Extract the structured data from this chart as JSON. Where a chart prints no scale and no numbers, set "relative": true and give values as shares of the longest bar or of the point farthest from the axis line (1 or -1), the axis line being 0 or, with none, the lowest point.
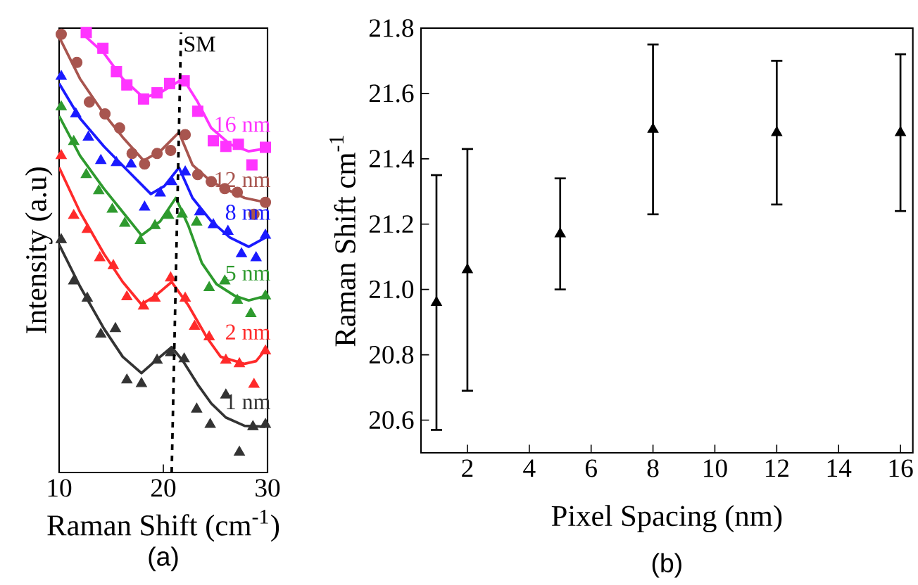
{
  "chart_data": [
    {
      "type": "scatter",
      "relative": true,
      "xlabel": "Raman Shift (cm$^{-1}$)",
      "ylabel": "Intensity (a.u)",
      "xlim": [
        10,
        30
      ],
      "xticks": [
        10,
        20,
        30
      ],
      "annotations": [
        "(a)"
      ],
      "series": [
        {
          "name": "1 nm",
          "type": "scatter",
          "marker": "triangle",
          "color": "#333333",
          "x": [
            10.2,
            11.4,
            12.7,
            14.0,
            15.4,
            16.5,
            17.9,
            19.4,
            20.7,
            22.0,
            23.2,
            24.5,
            26.0,
            27.3,
            28.6,
            29.8
          ],
          "values": [
            0.529,
            0.435,
            0.396,
            0.314,
            0.327,
            0.21,
            0.202,
            0.255,
            0.272,
            0.258,
            0.144,
            0.109,
            0.176,
            0.046,
            0.104,
            0.109
          ]
        },
        {
          "type": "line",
          "color": "#333333",
          "x": [
            10,
            12.0,
            14.3,
            16.1,
            17.9,
            19.2,
            20.8,
            21.9,
            23.3,
            24.6,
            26.0,
            27.8,
            29.8
          ],
          "values": [
            0.518,
            0.423,
            0.327,
            0.263,
            0.226,
            0.253,
            0.285,
            0.253,
            0.2,
            0.157,
            0.125,
            0.106,
            0.104
          ]
        },
        {
          "name": "2 nm",
          "type": "scatter",
          "marker": "triangle",
          "color": "#ff2a2a",
          "x": [
            10.2,
            11.4,
            12.7,
            13.9,
            15.2,
            16.5,
            18.1,
            19.2,
            20.7,
            22.1,
            23.0,
            24.4,
            26.0,
            27.3,
            28.7,
            29.8
          ],
          "values": [
            0.72,
            0.584,
            0.552,
            0.488,
            0.47,
            0.399,
            0.378,
            0.396,
            0.442,
            0.396,
            0.332,
            0.308,
            0.255,
            0.247,
            0.2,
            0.276
          ]
        },
        {
          "type": "line",
          "color": "#ff2a2a",
          "x": [
            10,
            12.0,
            14.3,
            16.1,
            17.9,
            19.2,
            20.8,
            22.4,
            24.2,
            25.5,
            27.8,
            28.9,
            29.8
          ],
          "values": [
            0.693,
            0.592,
            0.497,
            0.433,
            0.382,
            0.401,
            0.433,
            0.38,
            0.306,
            0.263,
            0.247,
            0.253,
            0.279
          ]
        },
        {
          "name": "5 nm",
          "type": "scatter",
          "marker": "triangle",
          "color": "#2e9a2e",
          "x": [
            10.2,
            11.4,
            12.6,
            13.8,
            15.1,
            16.3,
            17.8,
            19.2,
            20.5,
            21.8,
            23.2,
            24.4,
            25.9,
            27.1,
            28.4,
            29.8
          ],
          "values": [
            0.831,
            0.752,
            0.677,
            0.64,
            0.598,
            0.566,
            0.527,
            0.561,
            0.584,
            0.587,
            0.569,
            0.42,
            0.435,
            0.391,
            0.361,
            0.401
          ]
        },
        {
          "type": "line",
          "color": "#2e9a2e",
          "x": [
            10,
            12.0,
            14.3,
            16.1,
            17.9,
            19.7,
            21.2,
            22.4,
            23.7,
            25.1,
            26.9,
            28.2,
            29.8
          ],
          "values": [
            0.81,
            0.72,
            0.645,
            0.592,
            0.539,
            0.571,
            0.624,
            0.561,
            0.476,
            0.428,
            0.401,
            0.391,
            0.401
          ]
        },
        {
          "name": "8 nm",
          "type": "scatter",
          "marker": "triangle",
          "color": "#1a1aff",
          "x": [
            10.2,
            11.6,
            12.8,
            14.0,
            15.5,
            16.9,
            18.2,
            19.7,
            20.8,
            22.1,
            23.5,
            24.8,
            26.2,
            27.5,
            28.9,
            29.8
          ],
          "values": [
            0.9,
            0.815,
            0.762,
            0.709,
            0.704,
            0.701,
            0.603,
            0.635,
            0.661,
            0.683,
            0.592,
            0.563,
            0.548,
            0.497,
            0.488,
            0.539
          ]
        },
        {
          "type": "line",
          "color": "#1a1aff",
          "x": [
            10,
            12.0,
            14.3,
            16.5,
            18.8,
            20.1,
            21.5,
            22.8,
            24.6,
            26.4,
            28.2,
            29.8
          ],
          "values": [
            0.884,
            0.805,
            0.741,
            0.688,
            0.633,
            0.651,
            0.693,
            0.624,
            0.571,
            0.534,
            0.513,
            0.534
          ]
        },
        {
          "name": "12 nm",
          "type": "scatter",
          "marker": "circle",
          "color": "#a8554f",
          "x": [
            10.2,
            11.7,
            12.9,
            14.4,
            15.8,
            17.0,
            18.2,
            19.4,
            20.7,
            22.1,
            23.3,
            24.6,
            25.9,
            27.1,
            28.7,
            29.8
          ],
          "values": [
            0.996,
            0.932,
            0.842,
            0.815,
            0.783,
            0.725,
            0.701,
            0.725,
            0.732,
            0.768,
            0.677,
            0.661,
            0.645,
            0.637,
            0.587,
            0.614
          ]
        },
        {
          "type": "line",
          "color": "#a8554f",
          "x": [
            10,
            12.0,
            14.3,
            16.1,
            18.1,
            19.7,
            21.5,
            22.8,
            24.6,
            26.4,
            27.8,
            29.8
          ],
          "values": [
            0.99,
            0.895,
            0.815,
            0.762,
            0.709,
            0.73,
            0.773,
            0.699,
            0.661,
            0.64,
            0.624,
            0.614
          ]
        },
        {
          "name": "16 nm",
          "type": "scatter",
          "marker": "square",
          "color": "#ff33ff",
          "x": [
            12.6,
            14.2,
            15.5,
            16.5,
            18.1,
            19.4,
            20.6,
            22.0,
            23.3,
            24.8,
            26.0,
            27.2,
            28.5,
            29.8
          ],
          "values": [
            1.0,
            0.964,
            0.911,
            0.881,
            0.849,
            0.863,
            0.884,
            0.89,
            0.821,
            0.754,
            0.741,
            0.746,
            0.699,
            0.739
          ]
        },
        {
          "type": "line",
          "color": "#ff33ff",
          "x": [
            12.2,
            14.3,
            16.1,
            18.1,
            19.7,
            21.9,
            23.3,
            24.6,
            26.4,
            28.2,
            29.8
          ],
          "values": [
            0.998,
            0.953,
            0.895,
            0.852,
            0.863,
            0.895,
            0.842,
            0.783,
            0.746,
            0.73,
            0.736
          ]
        },
        {
          "name": "SM",
          "type": "line",
          "line_style": "dashed",
          "color": "#000000",
          "x": [
            20.8,
            21.7
          ],
          "values": [
            0,
            1.0
          ]
        }
      ]
    },
    {
      "type": "scatter",
      "xlabel": "Pixel Spacing (nm)",
      "ylabel": "Raman Shift cm$^{-1}$",
      "xlim": [
        0.5,
        16.4
      ],
      "ylim": [
        20.5,
        21.8
      ],
      "xticks": [
        2,
        4,
        6,
        8,
        10,
        12,
        14,
        16
      ],
      "yticks": [
        20.6,
        20.8,
        {
          "value": 21.0,
          "label": "21.0"
        },
        21.2,
        21.4,
        21.6,
        21.8
      ],
      "annotations": [
        "(b)"
      ],
      "marker": "triangle",
      "color": "#000000",
      "x": [
        1,
        2,
        5,
        8,
        12,
        16
      ],
      "values": [
        20.96,
        21.06,
        21.17,
        21.49,
        21.48,
        21.48
      ],
      "errors": [
        [
          20.57,
          21.35
        ],
        [
          20.69,
          21.43
        ],
        [
          21.0,
          21.34
        ],
        [
          21.23,
          21.75
        ],
        [
          21.26,
          21.7
        ],
        [
          21.24,
          21.72
        ]
      ]
    }
  ]
}
